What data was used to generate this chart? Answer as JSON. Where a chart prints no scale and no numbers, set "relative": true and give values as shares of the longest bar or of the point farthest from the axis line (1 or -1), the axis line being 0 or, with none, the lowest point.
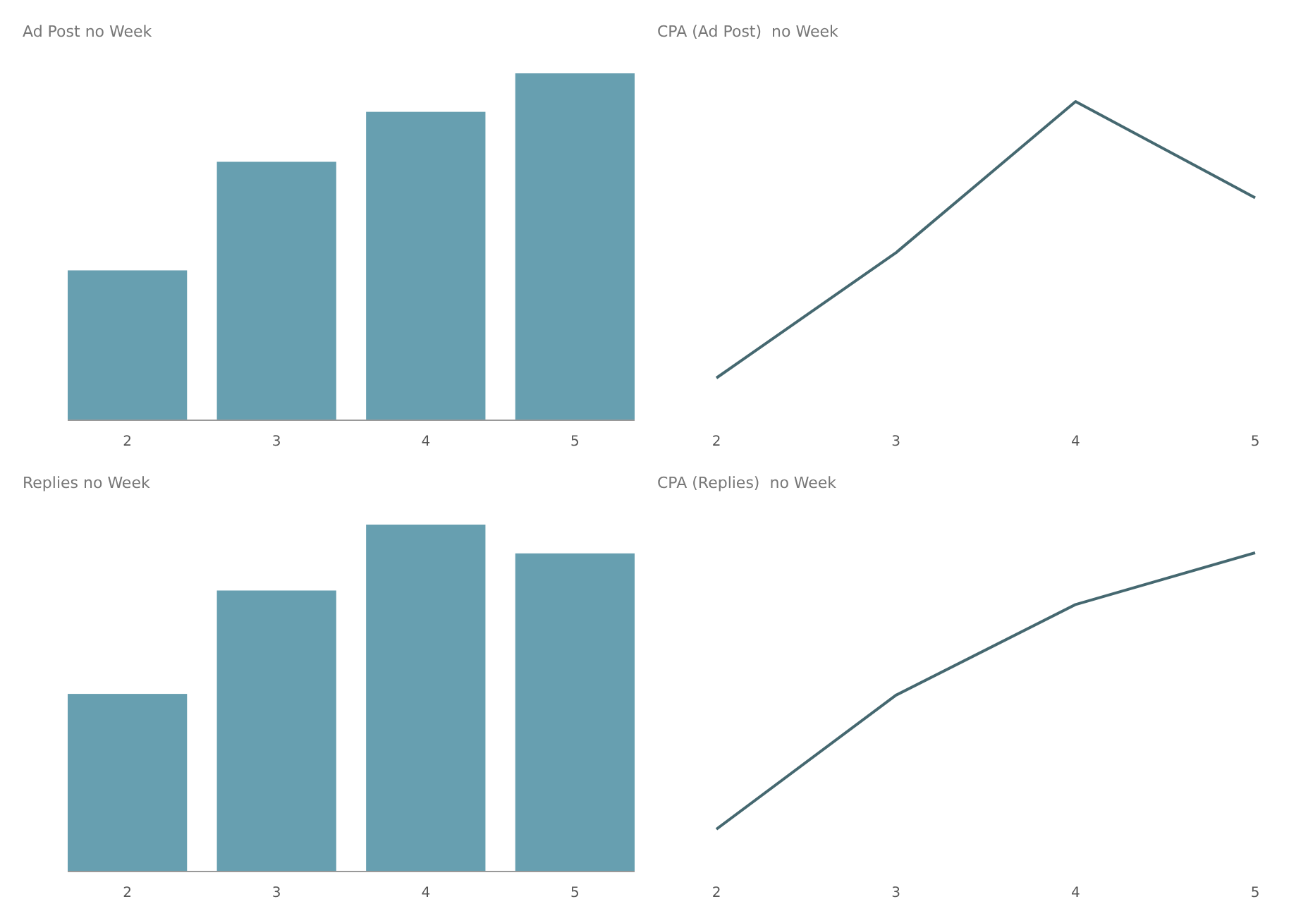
{
  "chart_data": [
    {
      "type": "bar",
      "title": "Ad Post no Week",
      "categories": [
        "2",
        "3",
        "4",
        "5"
      ],
      "values": [
        0.432,
        0.745,
        0.889,
        1
      ],
      "color": "#679fb0",
      "relative": true
    },
    {
      "type": "line",
      "title": "CPA (Ad Post)  no Week",
      "categories": [
        "2",
        "3",
        "4",
        "5"
      ],
      "values": [
        0,
        0.453,
        1,
        0.652
      ],
      "color": "#456870",
      "relative": true
    },
    {
      "type": "bar",
      "title": "Replies no Week",
      "categories": [
        "2",
        "3",
        "4",
        "5"
      ],
      "values": [
        0.512,
        0.81,
        1,
        0.917
      ],
      "color": "#679fb0",
      "relative": true
    },
    {
      "type": "line",
      "title": "CPA (Replies)  no Week",
      "categories": [
        "2",
        "3",
        "4",
        "5"
      ],
      "values": [
        0,
        0.485,
        0.813,
        1
      ],
      "color": "#456870",
      "relative": true
    }
  ]
}
